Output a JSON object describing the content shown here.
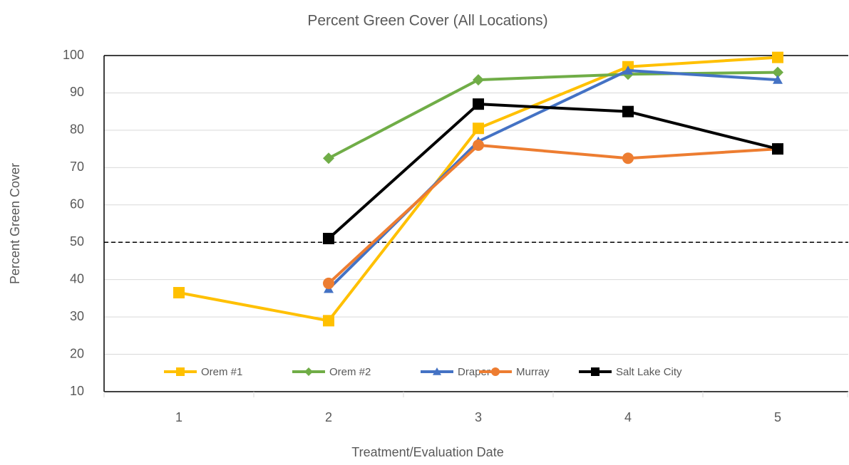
{
  "chart_data": {
    "type": "line",
    "title": "Percent Green Cover (All Locations)",
    "x_label": "Treatment/Evaluation Date",
    "y_label": "Percent Green Cover",
    "categories": [
      "1",
      "2",
      "3",
      "4",
      "5"
    ],
    "series": [
      {
        "name": "Orem #1",
        "color": "#FFC000",
        "marker": "square",
        "values": [
          36.5,
          29,
          80.5,
          97,
          99.5
        ]
      },
      {
        "name": "Orem #2",
        "color": "#70AD47",
        "marker": "diamond",
        "values": [
          null,
          72.5,
          93.5,
          95,
          95.5
        ]
      },
      {
        "name": "Draper",
        "color": "#4472C4",
        "marker": "triangle",
        "values": [
          null,
          37.5,
          77,
          96,
          93.5
        ]
      },
      {
        "name": "Murray",
        "color": "#ED7D31",
        "marker": "circle",
        "values": [
          null,
          39,
          76,
          72.5,
          75
        ]
      },
      {
        "name": "Salt Lake City",
        "color": "#000000",
        "marker": "square",
        "values": [
          null,
          51,
          87,
          85,
          75
        ]
      }
    ],
    "reference_line": 50,
    "ylim": [
      10,
      100
    ],
    "yticks": [
      10,
      20,
      30,
      40,
      50,
      60,
      70,
      80,
      90,
      100
    ],
    "grid": true,
    "legend": "bottom"
  }
}
